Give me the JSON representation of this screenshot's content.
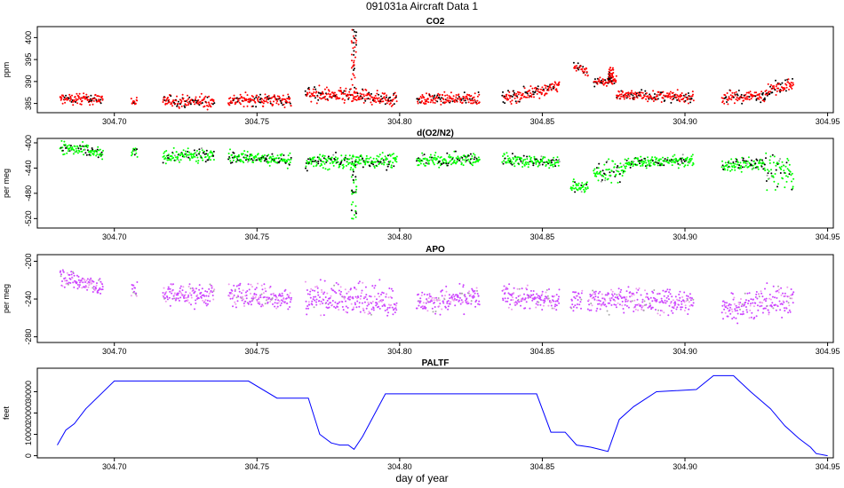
{
  "page": {
    "title": "091031a   Aircraft Data 1",
    "xlabel": "day of year"
  },
  "chart_data": [
    {
      "id": "co2",
      "type": "scatter",
      "title": "CO2",
      "ylabel": "ppm",
      "xlim": [
        304.673,
        304.952
      ],
      "ylim": [
        382.9,
        402.5
      ],
      "yticks": [
        385,
        390,
        395,
        400
      ],
      "xticks": [
        304.7,
        304.75,
        304.8,
        304.85,
        304.9,
        304.95
      ],
      "colors": [
        "#ff0000",
        "#000000"
      ],
      "segments": [
        {
          "x": [
            304.681,
            304.696
          ],
          "y": [
            386.0,
            386.0
          ],
          "noise": 0.6
        },
        {
          "x": [
            304.706,
            304.708
          ],
          "y": [
            385.4,
            385.4
          ],
          "noise": 0.5
        },
        {
          "x": [
            304.717,
            304.735
          ],
          "y": [
            385.6,
            385.3
          ],
          "noise": 0.7
        },
        {
          "x": [
            304.74,
            304.762
          ],
          "y": [
            385.8,
            385.8
          ],
          "noise": 0.7
        },
        {
          "x": [
            304.767,
            304.799
          ],
          "y": [
            387.2,
            386.0
          ],
          "noise": 0.8
        },
        {
          "x": [
            304.806,
            304.828
          ],
          "y": [
            386.0,
            386.1
          ],
          "noise": 0.6
        },
        {
          "x": [
            304.836,
            304.856
          ],
          "y": [
            386.0,
            389.0
          ],
          "noise": 0.7
        },
        {
          "x": [
            304.861,
            304.866
          ],
          "y": [
            393.7,
            392.2
          ],
          "noise": 0.5
        },
        {
          "x": [
            304.868,
            304.876
          ],
          "y": [
            389.7,
            390.3
          ],
          "noise": 0.6
        },
        {
          "x": [
            304.876,
            304.903
          ],
          "y": [
            387.0,
            386.3
          ],
          "noise": 0.6
        },
        {
          "x": [
            304.913,
            304.928
          ],
          "y": [
            386.2,
            386.8
          ],
          "noise": 0.7
        },
        {
          "x": [
            304.928,
            304.938
          ],
          "y": [
            387.5,
            390.0
          ],
          "noise": 0.7
        }
      ],
      "peaks": [
        {
          "x": 304.784,
          "y": 402.0
        },
        {
          "x": 304.874,
          "y": 393.2
        }
      ]
    },
    {
      "id": "o2n2",
      "type": "scatter",
      "title": "d(O2/N2)",
      "ylabel": "per meg",
      "xlim": [
        304.673,
        304.952
      ],
      "ylim": [
        -535,
        -393
      ],
      "yticks": [
        -400,
        -440,
        -480,
        -520
      ],
      "xticks": [
        304.7,
        304.75,
        304.8,
        304.85,
        304.9,
        304.95
      ],
      "colors": [
        "#00ff00",
        "#000000",
        "#999999"
      ],
      "segments": [
        {
          "x": [
            304.681,
            304.696
          ],
          "y": [
            -407,
            -418
          ],
          "noise": 5
        },
        {
          "x": [
            304.706,
            304.708
          ],
          "y": [
            -416,
            -416
          ],
          "noise": 4
        },
        {
          "x": [
            304.717,
            304.735
          ],
          "y": [
            -421,
            -420
          ],
          "noise": 5
        },
        {
          "x": [
            304.74,
            304.762
          ],
          "y": [
            -422,
            -428
          ],
          "noise": 5
        },
        {
          "x": [
            304.767,
            304.799
          ],
          "y": [
            -430,
            -428
          ],
          "noise": 6
        },
        {
          "x": [
            304.806,
            304.828
          ],
          "y": [
            -428,
            -426
          ],
          "noise": 5
        },
        {
          "x": [
            304.836,
            304.856
          ],
          "y": [
            -425,
            -432
          ],
          "noise": 5
        },
        {
          "x": [
            304.86,
            304.866
          ],
          "y": [
            -468,
            -470
          ],
          "noise": 5
        },
        {
          "x": [
            304.868,
            304.879
          ],
          "y": [
            -448,
            -444
          ],
          "noise": 9
        },
        {
          "x": [
            304.879,
            304.903
          ],
          "y": [
            -432,
            -428
          ],
          "noise": 4
        },
        {
          "x": [
            304.913,
            304.928
          ],
          "y": [
            -436,
            -432
          ],
          "noise": 5
        },
        {
          "x": [
            304.928,
            304.938
          ],
          "y": [
            -438,
            -452
          ],
          "noise": 14
        }
      ],
      "dips": [
        {
          "x": 304.784,
          "y": -528
        }
      ]
    },
    {
      "id": "apo",
      "type": "scatter",
      "title": "APO",
      "ylabel": "per meg",
      "xlim": [
        304.673,
        304.952
      ],
      "ylim": [
        -286,
        -193
      ],
      "yticks": [
        -200,
        -240,
        -280
      ],
      "xticks": [
        304.7,
        304.75,
        304.8,
        304.85,
        304.9,
        304.95
      ],
      "colors": [
        "#cc44ff",
        "#ee99ee",
        "#aaaaaa"
      ],
      "segments": [
        {
          "x": [
            304.681,
            304.696
          ],
          "y": [
            -216,
            -228
          ],
          "noise": 5
        },
        {
          "x": [
            304.706,
            304.708
          ],
          "y": [
            -232,
            -232
          ],
          "noise": 4
        },
        {
          "x": [
            304.717,
            304.735
          ],
          "y": [
            -236,
            -236
          ],
          "noise": 6
        },
        {
          "x": [
            304.74,
            304.762
          ],
          "y": [
            -236,
            -240
          ],
          "noise": 6
        },
        {
          "x": [
            304.767,
            304.799
          ],
          "y": [
            -238,
            -242
          ],
          "noise": 8
        },
        {
          "x": [
            304.806,
            304.828
          ],
          "y": [
            -244,
            -238
          ],
          "noise": 6
        },
        {
          "x": [
            304.836,
            304.856
          ],
          "y": [
            -237,
            -242
          ],
          "noise": 6
        },
        {
          "x": [
            304.86,
            304.864
          ],
          "y": [
            -240,
            -240
          ],
          "noise": 5
        },
        {
          "x": [
            304.866,
            304.903
          ],
          "y": [
            -240,
            -244
          ],
          "noise": 7
        },
        {
          "x": [
            304.913,
            304.938
          ],
          "y": [
            -248,
            -240
          ],
          "noise": 8
        }
      ]
    },
    {
      "id": "paltf",
      "type": "line",
      "title": "PALTF",
      "ylabel": "feet",
      "xlim": [
        304.673,
        304.952
      ],
      "ylim": [
        -1000,
        41000
      ],
      "yticks": [
        0,
        10000,
        20000,
        30000
      ],
      "xticks": [
        304.7,
        304.75,
        304.8,
        304.85,
        304.9,
        304.95
      ],
      "color": "#0000ff",
      "x": [
        304.68,
        304.683,
        304.686,
        304.69,
        304.7,
        304.747,
        304.757,
        304.768,
        304.772,
        304.776,
        304.779,
        304.782,
        304.784,
        304.787,
        304.795,
        304.848,
        304.853,
        304.858,
        304.862,
        304.867,
        304.87,
        304.873,
        304.877,
        304.882,
        304.89,
        304.904,
        304.91,
        304.917,
        304.923,
        304.93,
        304.935,
        304.94,
        304.944,
        304.946,
        304.95
      ],
      "y": [
        5000,
        12000,
        15000,
        22000,
        35000,
        35000,
        27000,
        27000,
        10000,
        6000,
        5000,
        5000,
        3000,
        9000,
        29000,
        29000,
        11000,
        11000,
        5000,
        4000,
        3000,
        2000,
        17000,
        23000,
        30000,
        31000,
        37500,
        37500,
        30000,
        22000,
        14000,
        8000,
        4000,
        1000,
        0
      ]
    }
  ]
}
